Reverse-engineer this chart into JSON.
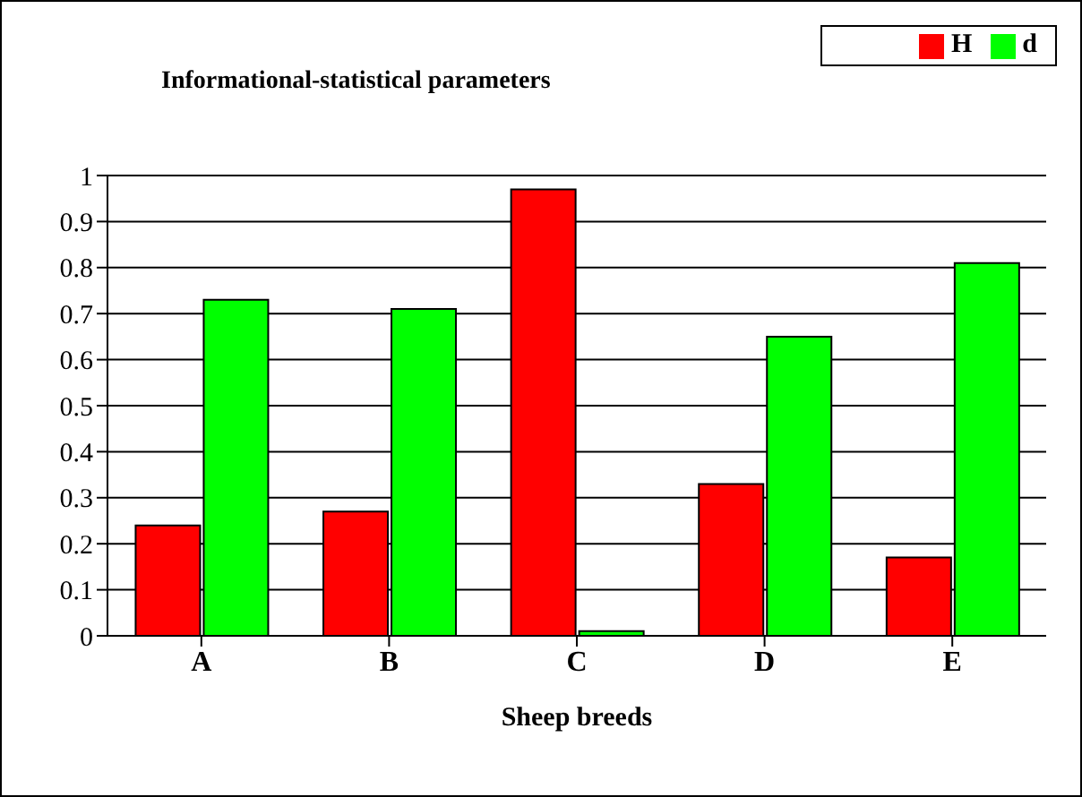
{
  "chart_data": {
    "type": "bar",
    "title": "Informational-statistical parameters",
    "xlabel": "Sheep breeds",
    "categories": [
      "A",
      "B",
      "C",
      "D",
      "E"
    ],
    "series": [
      {
        "name": "H",
        "color": "#ff0000",
        "values": [
          0.24,
          0.27,
          0.97,
          0.33,
          0.17
        ]
      },
      {
        "name": "d",
        "color": "#00ff00",
        "values": [
          0.73,
          0.71,
          0.01,
          0.65,
          0.81
        ]
      }
    ],
    "ylim": [
      0,
      1
    ],
    "yticks": [
      0,
      0.1,
      0.2,
      0.3,
      0.4,
      0.5,
      0.6,
      0.7,
      0.8,
      0.9,
      1
    ],
    "grid": "y",
    "legend": "top right"
  }
}
